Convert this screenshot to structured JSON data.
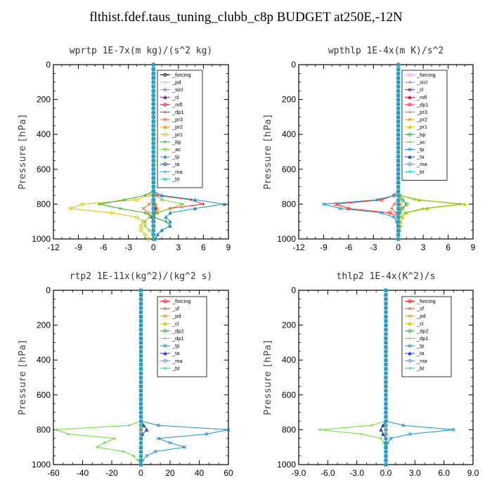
{
  "title": "flthist.fdef.taus_tuning_clubb_c8p  BUDGET at250E,-12N",
  "chart_data": [
    {
      "type": "line",
      "title": "wprtp  1E-7x(m kg)/(s^2 kg)",
      "ylabel": "Pressure [hPa]",
      "xlim": [
        -12,
        9
      ],
      "xticks": [
        "-12",
        "-9",
        "-6",
        "-3",
        "0",
        "3",
        "6",
        "9"
      ],
      "ylim": [
        1000,
        0
      ],
      "yticks": [
        "0",
        "200",
        "400",
        "600",
        "800",
        "1000"
      ],
      "grid": false,
      "legend_position": "top-right",
      "y": [
        725,
        750,
        775,
        800,
        825,
        850,
        875,
        900,
        925,
        950,
        975,
        1000
      ],
      "series": [
        {
          "name": "_forcing",
          "color": "#000000",
          "x": [
            0,
            0,
            0,
            0,
            0,
            0,
            0,
            0,
            0,
            0,
            0,
            0
          ]
        },
        {
          "name": "_pd",
          "color": "#e6a0e6",
          "x": [
            0,
            0,
            0,
            0,
            0,
            0,
            0,
            0,
            0,
            0,
            0,
            0
          ]
        },
        {
          "name": "_sicl",
          "color": "#9a6fd0",
          "x": [
            0,
            0,
            0,
            0,
            0,
            0,
            0,
            0,
            0,
            0,
            0,
            0
          ]
        },
        {
          "name": "_cl",
          "color": "#6a1b9a",
          "x": [
            0,
            0,
            0,
            0.2,
            0.3,
            0.2,
            0.1,
            0,
            0,
            0,
            0,
            0
          ]
        },
        {
          "name": "_mfl",
          "color": "#cc0044",
          "x": [
            0,
            0,
            0,
            0,
            0,
            0,
            0,
            0,
            0,
            0,
            0,
            0
          ]
        },
        {
          "name": "_dp1",
          "color": "#ff1a1a",
          "x": [
            0,
            0.5,
            4.5,
            6,
            2,
            0.5,
            -0.3,
            0,
            0,
            0,
            0,
            0
          ]
        },
        {
          "name": "_pr3",
          "color": "#ff6633",
          "x": [
            0,
            0,
            0,
            -0.5,
            -1.2,
            -0.6,
            0,
            0,
            0,
            0,
            0,
            0
          ]
        },
        {
          "name": "_pr2",
          "color": "#ff9900",
          "x": [
            0,
            0,
            0,
            0.3,
            0.5,
            0.3,
            0.1,
            0,
            0,
            0,
            0,
            0
          ]
        },
        {
          "name": "_pr1",
          "color": "#e0c000",
          "x": [
            0,
            -0.5,
            -2,
            -8.5,
            -10,
            -5,
            -2,
            -1.2,
            -1.5,
            -1.5,
            -1,
            -0.5
          ]
        },
        {
          "name": "_bp",
          "color": "#22aa22",
          "x": [
            0,
            -1,
            -3.5,
            -6.5,
            -4,
            -1,
            0,
            1.5,
            2,
            1,
            0.5,
            0.3
          ]
        },
        {
          "name": "_ac",
          "color": "#77cc33",
          "x": [
            0,
            0.2,
            1,
            3.5,
            2,
            0.5,
            -0.5,
            -1,
            -1,
            -0.5,
            0,
            0
          ]
        },
        {
          "name": "_tp",
          "color": "#1a8fd0",
          "x": [
            0,
            1,
            5,
            8.5,
            5,
            2,
            1.5,
            2,
            2,
            1,
            0.5,
            0.2
          ]
        },
        {
          "name": "_ta",
          "color": "#1f3fbf",
          "x": [
            0,
            0,
            0,
            0,
            0,
            0,
            0,
            0,
            0,
            0,
            0,
            0
          ]
        },
        {
          "name": "_ma",
          "color": "#3399ee",
          "x": [
            0,
            0,
            0,
            0,
            0,
            0,
            0,
            0,
            0,
            0,
            0,
            0
          ]
        },
        {
          "name": "_bt",
          "color": "#00cccc",
          "x": [
            0,
            0,
            0,
            0,
            0,
            0,
            0,
            0,
            0,
            0,
            0,
            0
          ]
        }
      ]
    },
    {
      "type": "line",
      "title": "wpthlp  1E-4x(m K)/s^2",
      "ylabel": "Pressure [hPa]",
      "xlim": [
        -12,
        9
      ],
      "xticks": [
        "-12",
        "-9",
        "-6",
        "-3",
        "0",
        "3",
        "6",
        "9"
      ],
      "ylim": [
        1000,
        0
      ],
      "yticks": [
        "0",
        "200",
        "400",
        "600",
        "800",
        "1000"
      ],
      "grid": false,
      "legend_position": "top-right",
      "y": [
        725,
        750,
        775,
        800,
        825,
        850,
        875,
        900,
        925,
        950,
        975,
        1000
      ],
      "series": [
        {
          "name": "_forcing",
          "color": "#e6a0e6",
          "x": [
            0,
            0,
            0,
            0,
            0,
            0,
            0,
            0,
            0,
            0,
            0,
            0
          ]
        },
        {
          "name": "_sicl",
          "color": "#9a6fd0",
          "x": [
            0,
            0,
            0,
            0,
            0,
            0,
            0,
            0,
            0,
            0,
            0,
            0
          ]
        },
        {
          "name": "_cl",
          "color": "#6a1b9a",
          "x": [
            0,
            0,
            0,
            0,
            0,
            0,
            0,
            0,
            0,
            0,
            0,
            0
          ]
        },
        {
          "name": "_mfl",
          "color": "#cc0044",
          "x": [
            0,
            0,
            0,
            0,
            0,
            0,
            0,
            0,
            0,
            0,
            0,
            0
          ]
        },
        {
          "name": "_dp1",
          "color": "#ff1a1a",
          "x": [
            0,
            -0.5,
            -2,
            -7.5,
            -6,
            -1,
            0,
            0,
            0,
            0,
            0,
            0
          ]
        },
        {
          "name": "_pr3",
          "color": "#ff6633",
          "x": [
            0,
            0,
            0,
            -0.5,
            -0.8,
            -0.3,
            0,
            0,
            0,
            0,
            0,
            0
          ]
        },
        {
          "name": "_pr2",
          "color": "#ff9900",
          "x": [
            0,
            0,
            0,
            0.3,
            0.3,
            0.1,
            0,
            0,
            0,
            0,
            0,
            0
          ]
        },
        {
          "name": "_pr1",
          "color": "#e0c000",
          "x": [
            0,
            0.3,
            2.5,
            8,
            3.5,
            1,
            0.5,
            0.3,
            0.3,
            0.2,
            0.1,
            0
          ]
        },
        {
          "name": "_bp",
          "color": "#22aa22",
          "x": [
            0,
            0,
            0.5,
            1,
            0.5,
            0.2,
            0,
            0,
            0,
            0,
            0,
            0
          ]
        },
        {
          "name": "_ac",
          "color": "#77cc33",
          "x": [
            0,
            0.3,
            2,
            7.5,
            3,
            0.8,
            0.2,
            0,
            0,
            0,
            0,
            0
          ]
        },
        {
          "name": "_tp",
          "color": "#1a8fd0",
          "x": [
            0,
            -0.5,
            -2.5,
            -9,
            -7,
            -2,
            -0.5,
            -0.2,
            0,
            0,
            0,
            0
          ]
        },
        {
          "name": "_ta",
          "color": "#1f3fbf",
          "x": [
            0,
            0,
            0,
            0,
            0,
            0,
            0,
            0,
            0,
            0,
            0,
            0
          ]
        },
        {
          "name": "_ma",
          "color": "#3399ee",
          "x": [
            0,
            0,
            0,
            0,
            0,
            0,
            0,
            0,
            0,
            0,
            0,
            0
          ]
        },
        {
          "name": "_bt",
          "color": "#00cccc",
          "x": [
            0,
            0,
            0,
            0,
            0,
            0,
            0,
            0,
            0,
            0,
            0,
            0
          ]
        }
      ]
    },
    {
      "type": "line",
      "title": "rtp2  1E-11x(kg^2)/(kg^2 s)",
      "ylabel": "Pressure [hPa]",
      "xlim": [
        -60,
        60
      ],
      "xticks": [
        "-60",
        "-40",
        "-20",
        "0",
        "20",
        "40",
        "60"
      ],
      "ylim": [
        1000,
        0
      ],
      "yticks": [
        "0",
        "200",
        "400",
        "600",
        "800",
        "1000"
      ],
      "grid": false,
      "legend_position": "top-right",
      "y": [
        750,
        775,
        800,
        825,
        850,
        875,
        900,
        925,
        950,
        975,
        1000
      ],
      "series": [
        {
          "name": "_forcing",
          "color": "#ff1a1a",
          "x": [
            0,
            0,
            0,
            0,
            0,
            0,
            0,
            0,
            0,
            0,
            0
          ]
        },
        {
          "name": "_sf",
          "color": "#ff3300",
          "x": [
            0,
            0,
            0,
            0,
            0,
            0,
            0,
            0,
            0,
            0,
            0
          ]
        },
        {
          "name": "_pd",
          "color": "#ff9900",
          "x": [
            0,
            0,
            0,
            0,
            0,
            0,
            0,
            0,
            0,
            0,
            0
          ]
        },
        {
          "name": "_cl",
          "color": "#e0c000",
          "x": [
            0,
            0,
            0,
            0,
            0,
            0,
            0,
            0,
            0,
            0,
            0
          ]
        },
        {
          "name": "_dp2",
          "color": "#22aa22",
          "x": [
            0,
            0,
            0,
            0,
            0,
            0,
            0,
            0,
            0,
            0,
            0
          ]
        },
        {
          "name": "_dp1",
          "color": "#66dd33",
          "x": [
            0,
            -8,
            -58,
            -50,
            -18,
            -25,
            -30,
            -12,
            -5,
            -2,
            0
          ]
        },
        {
          "name": "_tp",
          "color": "#1a8fd0",
          "x": [
            0,
            12,
            60,
            45,
            12,
            20,
            30,
            10,
            4,
            1,
            0
          ]
        },
        {
          "name": "_ta",
          "color": "#1f3fbf",
          "x": [
            0,
            2,
            4,
            1,
            0,
            0,
            0,
            0,
            0,
            0,
            0
          ]
        },
        {
          "name": "_ma",
          "color": "#3399ee",
          "x": [
            0,
            0,
            0,
            0,
            0,
            0,
            0,
            0,
            0,
            0,
            0
          ]
        },
        {
          "name": "_bt",
          "color": "#00cccc",
          "x": [
            0,
            0,
            0,
            0,
            0,
            0,
            0,
            0,
            0,
            0,
            0
          ]
        }
      ]
    },
    {
      "type": "line",
      "title": "thlp2  1E-4x(K^2)/s",
      "ylabel": "Pressure [hPa]",
      "xlim": [
        -9,
        9
      ],
      "xticks": [
        "-9.0",
        "-6.0",
        "-3.0",
        "0.0",
        "3.0",
        "6.0",
        "9.0"
      ],
      "ylim": [
        1000,
        0
      ],
      "yticks": [
        "0",
        "200",
        "400",
        "600",
        "800",
        "1000"
      ],
      "grid": false,
      "legend_position": "top-right",
      "y": [
        750,
        775,
        800,
        825,
        850,
        875,
        900,
        925,
        950,
        975,
        1000
      ],
      "series": [
        {
          "name": "_forcing",
          "color": "#ff1a1a",
          "x": [
            0,
            0,
            0,
            0,
            0,
            0,
            0,
            0,
            0,
            0,
            0
          ]
        },
        {
          "name": "_sf",
          "color": "#ff3300",
          "x": [
            0,
            0,
            0,
            0,
            0,
            0,
            0,
            0,
            0,
            0,
            0
          ]
        },
        {
          "name": "_pd",
          "color": "#ff9900",
          "x": [
            0,
            0,
            0,
            0,
            0,
            0,
            0,
            0,
            0,
            0,
            0
          ]
        },
        {
          "name": "_cl",
          "color": "#e0c000",
          "x": [
            0,
            0,
            0,
            0,
            0,
            0,
            0,
            0,
            0,
            0,
            0
          ]
        },
        {
          "name": "_dp2",
          "color": "#22aa22",
          "x": [
            0,
            0,
            0,
            0,
            0,
            0,
            0,
            0,
            0,
            0,
            0
          ]
        },
        {
          "name": "_dp1",
          "color": "#66dd33",
          "x": [
            0,
            -1.5,
            -6.8,
            -2.5,
            -0.5,
            -0.2,
            0,
            0,
            0,
            0,
            0
          ]
        },
        {
          "name": "_tp",
          "color": "#1a8fd0",
          "x": [
            0,
            1.8,
            7,
            2.5,
            0.5,
            0.2,
            0,
            0,
            0,
            0,
            0
          ]
        },
        {
          "name": "_ta",
          "color": "#1f3fbf",
          "x": [
            0,
            -0.3,
            -0.5,
            -0.3,
            0,
            0,
            0,
            0,
            0,
            0,
            0
          ]
        },
        {
          "name": "_ma",
          "color": "#3399ee",
          "x": [
            0,
            0,
            0,
            0,
            0,
            0,
            0,
            0,
            0,
            0,
            0
          ]
        },
        {
          "name": "_bt",
          "color": "#00cccc",
          "x": [
            0,
            0,
            0,
            0,
            0,
            0,
            0,
            0,
            0,
            0,
            0
          ]
        }
      ]
    }
  ]
}
